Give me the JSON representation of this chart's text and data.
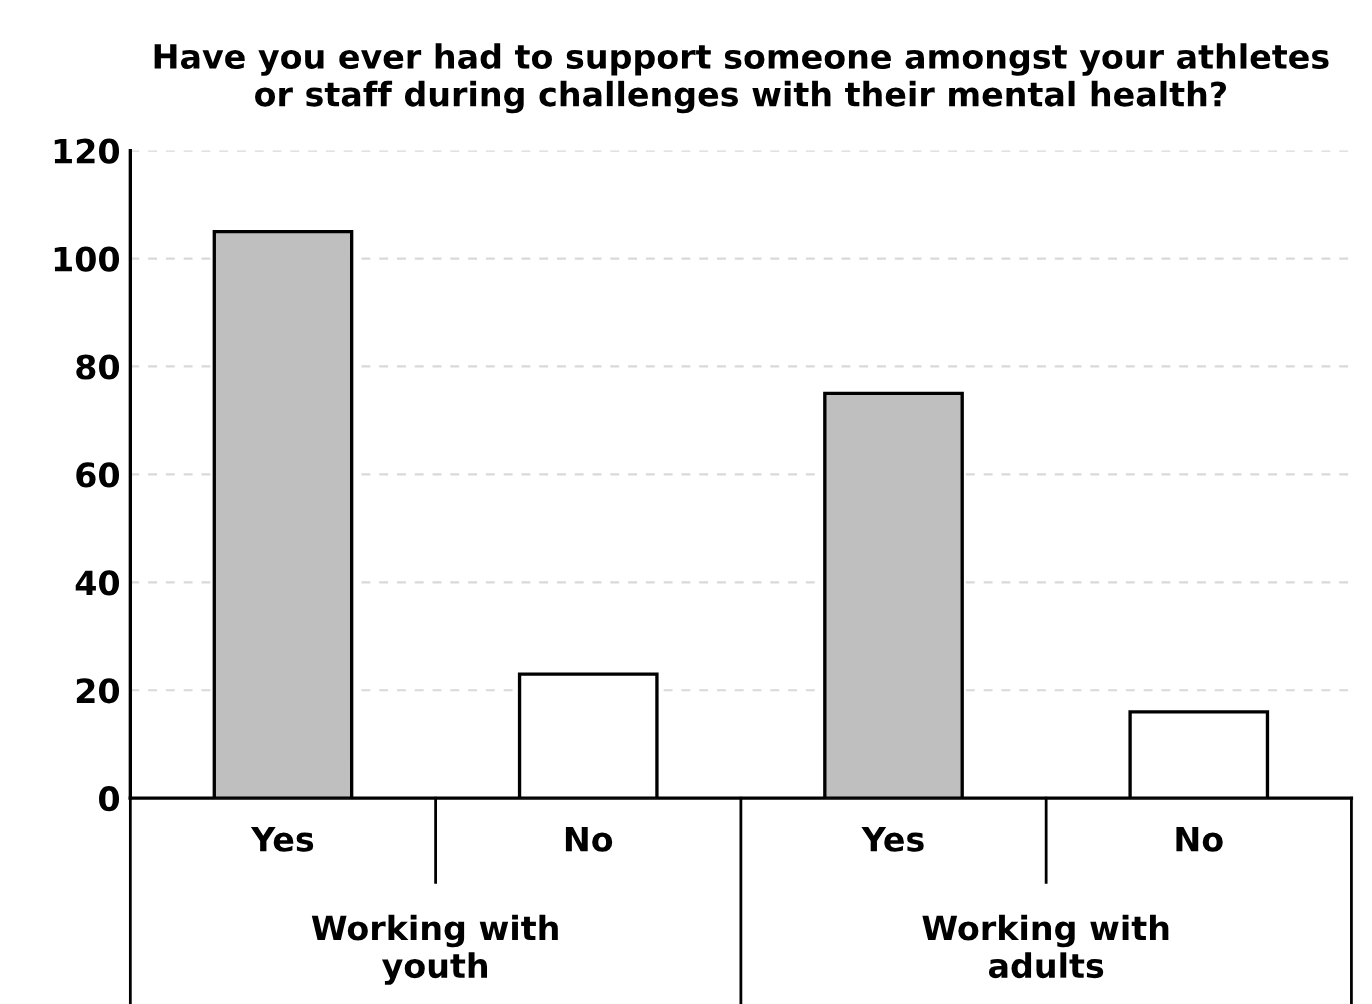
{
  "chart_data": {
    "type": "bar",
    "title": "Have you ever had to support someone amongst your athletes\nor staff during challenges with their mental health?",
    "categories": [
      "Yes",
      "No",
      "Yes",
      "No"
    ],
    "values": [
      105,
      23,
      75,
      16
    ],
    "colors": [
      "#bfbfbf",
      "#ffffff",
      "#bfbfbf",
      "#ffffff"
    ],
    "ylim": [
      0,
      120
    ],
    "yticks": [
      0,
      20,
      40,
      60,
      80,
      100,
      120
    ],
    "grid": "y",
    "annotations": [
      "Working with\nyouth",
      "Working with\nadults"
    ]
  }
}
